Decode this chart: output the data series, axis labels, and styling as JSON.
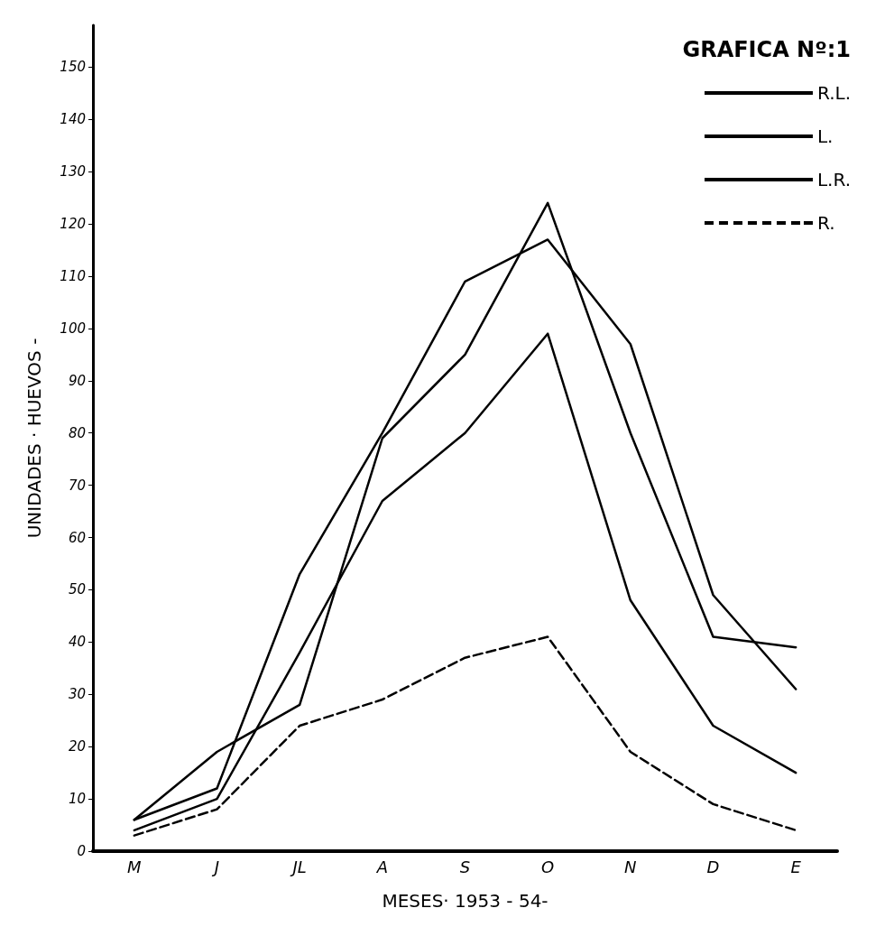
{
  "chart_data": {
    "type": "line",
    "title": "GRAFICA Nº:1",
    "xlabel": "MESES· 1953 - 54-",
    "ylabel": "UNIDADES · HUEVOS -",
    "categories": [
      "M",
      "J",
      "JL",
      "A",
      "S",
      "O",
      "N",
      "D",
      "E"
    ],
    "series": [
      {
        "name": "R.L.",
        "color": "#000000",
        "values": [
          6,
          12,
          53,
          80,
          109,
          117,
          97,
          49,
          31
        ]
      },
      {
        "name": "L.",
        "color": "#000000",
        "values": [
          6,
          19,
          28,
          79,
          95,
          124,
          80,
          41,
          39
        ]
      },
      {
        "name": "L.R.",
        "color": "#000000",
        "values": [
          4,
          10,
          38,
          67,
          80,
          99,
          48,
          24,
          15
        ]
      },
      {
        "name": "R.",
        "color": "#000000",
        "line_style": "dashed",
        "values": [
          3,
          8,
          24,
          29,
          37,
          41,
          19,
          9,
          4
        ]
      }
    ],
    "ylim": [
      0,
      158
    ],
    "yticks": [
      0,
      10,
      20,
      30,
      40,
      50,
      60,
      70,
      80,
      90,
      100,
      110,
      120,
      130,
      140,
      150
    ],
    "grid": false,
    "legend": "top right",
    "marker": "none",
    "line_style": "solid"
  }
}
